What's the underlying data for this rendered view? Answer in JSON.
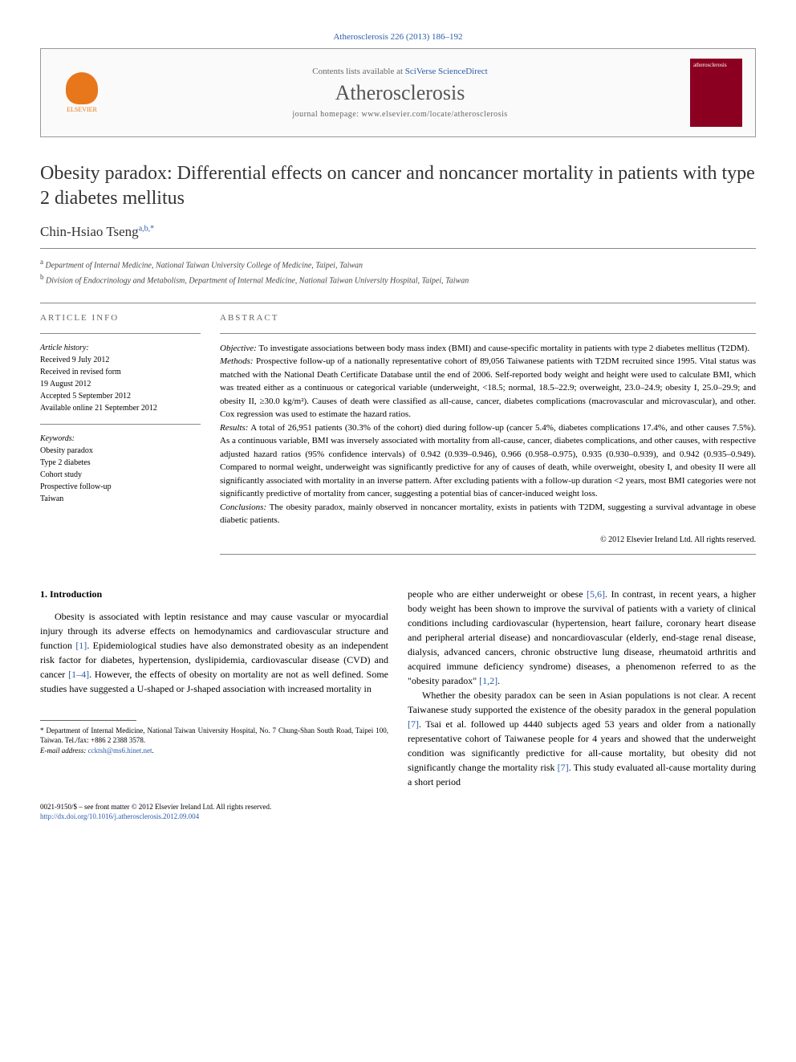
{
  "citation": "Atherosclerosis 226 (2013) 186–192",
  "header": {
    "contents_text": "Contents lists available at ",
    "contents_link": "SciVerse ScienceDirect",
    "journal_name": "Atherosclerosis",
    "homepage_label": "journal homepage: ",
    "homepage_url": "www.elsevier.com/locate/atherosclerosis",
    "publisher": "ELSEVIER",
    "cover_text": "atherosclerosis"
  },
  "title": "Obesity paradox: Differential effects on cancer and noncancer mortality in patients with type 2 diabetes mellitus",
  "author": {
    "name": "Chin-Hsiao Tseng",
    "marks": "a,b,*"
  },
  "affiliations": [
    {
      "mark": "a",
      "text": "Department of Internal Medicine, National Taiwan University College of Medicine, Taipei, Taiwan"
    },
    {
      "mark": "b",
      "text": "Division of Endocrinology and Metabolism, Department of Internal Medicine, National Taiwan University Hospital, Taipei, Taiwan"
    }
  ],
  "article_info": {
    "heading": "ARTICLE INFO",
    "history_heading": "Article history:",
    "history": [
      "Received 9 July 2012",
      "Received in revised form",
      "19 August 2012",
      "Accepted 5 September 2012",
      "Available online 21 September 2012"
    ],
    "keywords_heading": "Keywords:",
    "keywords": [
      "Obesity paradox",
      "Type 2 diabetes",
      "Cohort study",
      "Prospective follow-up",
      "Taiwan"
    ]
  },
  "abstract": {
    "heading": "ABSTRACT",
    "objective_label": "Objective:",
    "objective": " To investigate associations between body mass index (BMI) and cause-specific mortality in patients with type 2 diabetes mellitus (T2DM).",
    "methods_label": "Methods:",
    "methods": " Prospective follow-up of a nationally representative cohort of 89,056 Taiwanese patients with T2DM recruited since 1995. Vital status was matched with the National Death Certificate Database until the end of 2006. Self-reported body weight and height were used to calculate BMI, which was treated either as a continuous or categorical variable (underweight, <18.5; normal, 18.5–22.9; overweight, 23.0–24.9; obesity I, 25.0–29.9; and obesity II, ≥30.0 kg/m²). Causes of death were classified as all-cause, cancer, diabetes complications (macrovascular and microvascular), and other. Cox regression was used to estimate the hazard ratios.",
    "results_label": "Results:",
    "results": " A total of 26,951 patients (30.3% of the cohort) died during follow-up (cancer 5.4%, diabetes complications 17.4%, and other causes 7.5%). As a continuous variable, BMI was inversely associated with mortality from all-cause, cancer, diabetes complications, and other causes, with respective adjusted hazard ratios (95% confidence intervals) of 0.942 (0.939–0.946), 0.966 (0.958–0.975), 0.935 (0.930–0.939), and 0.942 (0.935–0.949). Compared to normal weight, underweight was significantly predictive for any of causes of death, while overweight, obesity I, and obesity II were all significantly associated with mortality in an inverse pattern. After excluding patients with a follow-up duration <2 years, most BMI categories were not significantly predictive of mortality from cancer, suggesting a potential bias of cancer-induced weight loss.",
    "conclusions_label": "Conclusions:",
    "conclusions": " The obesity paradox, mainly observed in noncancer mortality, exists in patients with T2DM, suggesting a survival advantage in obese diabetic patients.",
    "copyright": "© 2012 Elsevier Ireland Ltd. All rights reserved."
  },
  "body": {
    "section_heading": "1. Introduction",
    "col1_p1a": "Obesity is associated with leptin resistance and may cause vascular or myocardial injury through its adverse effects on hemodynamics and cardiovascular structure and function ",
    "col1_ref1": "[1]",
    "col1_p1b": ". Epidemiological studies have also demonstrated obesity as an independent risk factor for diabetes, hypertension, dyslipidemia, cardiovascular disease (CVD) and cancer ",
    "col1_ref2": "[1–4]",
    "col1_p1c": ". However, the effects of obesity on mortality are not as well defined. Some studies have suggested a U-shaped or J-shaped association with increased mortality in",
    "col2_p1a": "people who are either underweight or obese ",
    "col2_ref1": "[5,6]",
    "col2_p1b": ". In contrast, in recent years, a higher body weight has been shown to improve the survival of patients with a variety of clinical conditions including cardiovascular (hypertension, heart failure, coronary heart disease and peripheral arterial disease) and noncardiovascular (elderly, end-stage renal disease, dialysis, advanced cancers, chronic obstructive lung disease, rheumatoid arthritis and acquired immune deficiency syndrome) diseases, a phenomenon referred to as the \"obesity paradox\" ",
    "col2_ref2": "[1,2]",
    "col2_p1c": ".",
    "col2_p2a": "Whether the obesity paradox can be seen in Asian populations is not clear. A recent Taiwanese study supported the existence of the obesity paradox in the general population ",
    "col2_ref3": "[7]",
    "col2_p2b": ". Tsai et al. followed up 4440 subjects aged 53 years and older from a nationally representative cohort of Taiwanese people for 4 years and showed that the underweight condition was significantly predictive for all-cause mortality, but obesity did not significantly change the mortality risk ",
    "col2_ref4": "[7]",
    "col2_p2c": ". This study evaluated all-cause mortality during a short period"
  },
  "correspondence": {
    "star": "*",
    "text": " Department of Internal Medicine, National Taiwan University Hospital, No. 7 Chung-Shan South Road, Taipei 100, Taiwan. Tel./fax: +886 2 2388 3578.",
    "email_label": "E-mail address: ",
    "email": "ccktsh@ms6.hinet.net"
  },
  "footer": {
    "line1": "0021-9150/$ – see front matter © 2012 Elsevier Ireland Ltd. All rights reserved.",
    "doi": "http://dx.doi.org/10.1016/j.atherosclerosis.2012.09.004"
  }
}
